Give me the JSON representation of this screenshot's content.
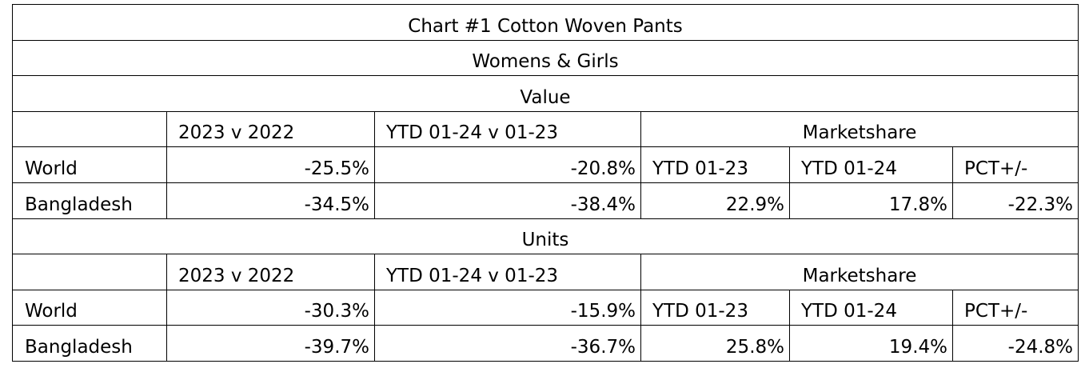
{
  "title": "Chart #1 Cotton Woven Pants",
  "subtitle": "Womens & Girls",
  "sections": [
    {
      "name": "Value",
      "headers": {
        "col1": "2023 v 2022",
        "col2": "YTD 01-24 v 01-23",
        "marketshare": "Marketshare"
      },
      "world": {
        "label": "World",
        "v2023": "-25.5%",
        "ytd": "-20.8%",
        "ms1": "YTD 01-23",
        "ms2": "YTD 01-24",
        "ms3": "PCT+/-"
      },
      "bangladesh": {
        "label": "Bangladesh",
        "v2023": "-34.5%",
        "ytd": "-38.4%",
        "ms1": "22.9%",
        "ms2": "17.8%",
        "ms3": "-22.3%"
      }
    },
    {
      "name": "Units",
      "headers": {
        "col1": "2023 v 2022",
        "col2": "YTD 01-24 v 01-23",
        "marketshare": "Marketshare"
      },
      "world": {
        "label": "World",
        "v2023": "-30.3%",
        "ytd": "-15.9%",
        "ms1": "YTD 01-23",
        "ms2": "YTD 01-24",
        "ms3": "PCT+/-"
      },
      "bangladesh": {
        "label": "Bangladesh",
        "v2023": "-39.7%",
        "ytd": "-36.7%",
        "ms1": "25.8%",
        "ms2": "19.4%",
        "ms3": "-24.8%"
      }
    }
  ]
}
